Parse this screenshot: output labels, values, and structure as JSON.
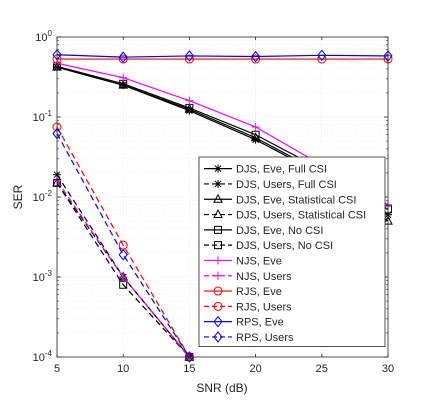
{
  "chart_data": {
    "type": "line",
    "xlabel": "SNR (dB)",
    "ylabel": "SER",
    "x": [
      5,
      10,
      15,
      20,
      25,
      30
    ],
    "xlim": [
      5,
      30
    ],
    "ylim": [
      0.0001,
      1
    ],
    "yscale": "log",
    "grid": true,
    "legend_position": "right-center",
    "x_ticks": [
      "5",
      "10",
      "15",
      "20",
      "25",
      "30"
    ],
    "y_ticks": [
      {
        "base": "10",
        "exp": "-4"
      },
      {
        "base": "10",
        "exp": "-3"
      },
      {
        "base": "10",
        "exp": "-2"
      },
      {
        "base": "10",
        "exp": "-1"
      },
      {
        "base": "10",
        "exp": "0"
      }
    ],
    "series": [
      {
        "name": "DJS, Eve, Full CSI",
        "color": "#000000",
        "dash": "solid",
        "marker": "asterisk",
        "values": [
          0.42,
          0.25,
          0.12,
          0.052,
          0.019,
          0.006
        ]
      },
      {
        "name": "DJS, Users, Full CSI",
        "color": "#000000",
        "dash": "dashed",
        "marker": "asterisk",
        "values": [
          0.019,
          0.001,
          0.0001,
          null,
          null,
          null
        ]
      },
      {
        "name": "DJS, Eve, Statistical CSI",
        "color": "#000000",
        "dash": "solid",
        "marker": "triangle",
        "values": [
          0.42,
          0.25,
          0.125,
          0.055,
          0.02,
          0.005
        ]
      },
      {
        "name": "DJS, Users, Statistical CSI",
        "color": "#000000",
        "dash": "dashed",
        "marker": "triangle",
        "values": [
          0.015,
          0.001,
          0.0001,
          null,
          null,
          null
        ]
      },
      {
        "name": "DJS, Eve, No CSI",
        "color": "#000000",
        "dash": "solid",
        "marker": "square",
        "values": [
          0.43,
          0.26,
          0.13,
          0.06,
          0.022,
          0.007
        ]
      },
      {
        "name": "DJS, Users, No CSI",
        "color": "#000000",
        "dash": "dashed",
        "marker": "square",
        "values": [
          0.015,
          0.0008,
          0.0001,
          null,
          null,
          null
        ]
      },
      {
        "name": "NJS, Eve",
        "color": "#ff00ff",
        "dash": "solid",
        "marker": "plus",
        "values": [
          0.47,
          0.31,
          0.16,
          0.075,
          0.025,
          0.008
        ]
      },
      {
        "name": "NJS, Users",
        "color": "#ff00ff",
        "dash": "dashed",
        "marker": "plus",
        "values": [
          0.016,
          0.001,
          0.0001,
          null,
          null,
          null
        ]
      },
      {
        "name": "RJS, Eve",
        "color": "#ff0000",
        "dash": "solid",
        "marker": "circle",
        "values": [
          0.53,
          0.53,
          0.53,
          0.53,
          0.53,
          0.53
        ]
      },
      {
        "name": "RJS, Users",
        "color": "#ff0000",
        "dash": "dashed",
        "marker": "circle",
        "values": [
          0.075,
          0.0025,
          0.0001,
          null,
          null,
          null
        ]
      },
      {
        "name": "RPS, Eve",
        "color": "#0000ff",
        "dash": "solid",
        "marker": "diamond",
        "values": [
          0.6,
          0.56,
          0.58,
          0.57,
          0.59,
          0.58
        ]
      },
      {
        "name": "RPS, Users",
        "color": "#0000ff",
        "dash": "dashed",
        "marker": "diamond",
        "values": [
          0.062,
          0.0019,
          0.0001,
          null,
          null,
          null
        ]
      }
    ]
  }
}
